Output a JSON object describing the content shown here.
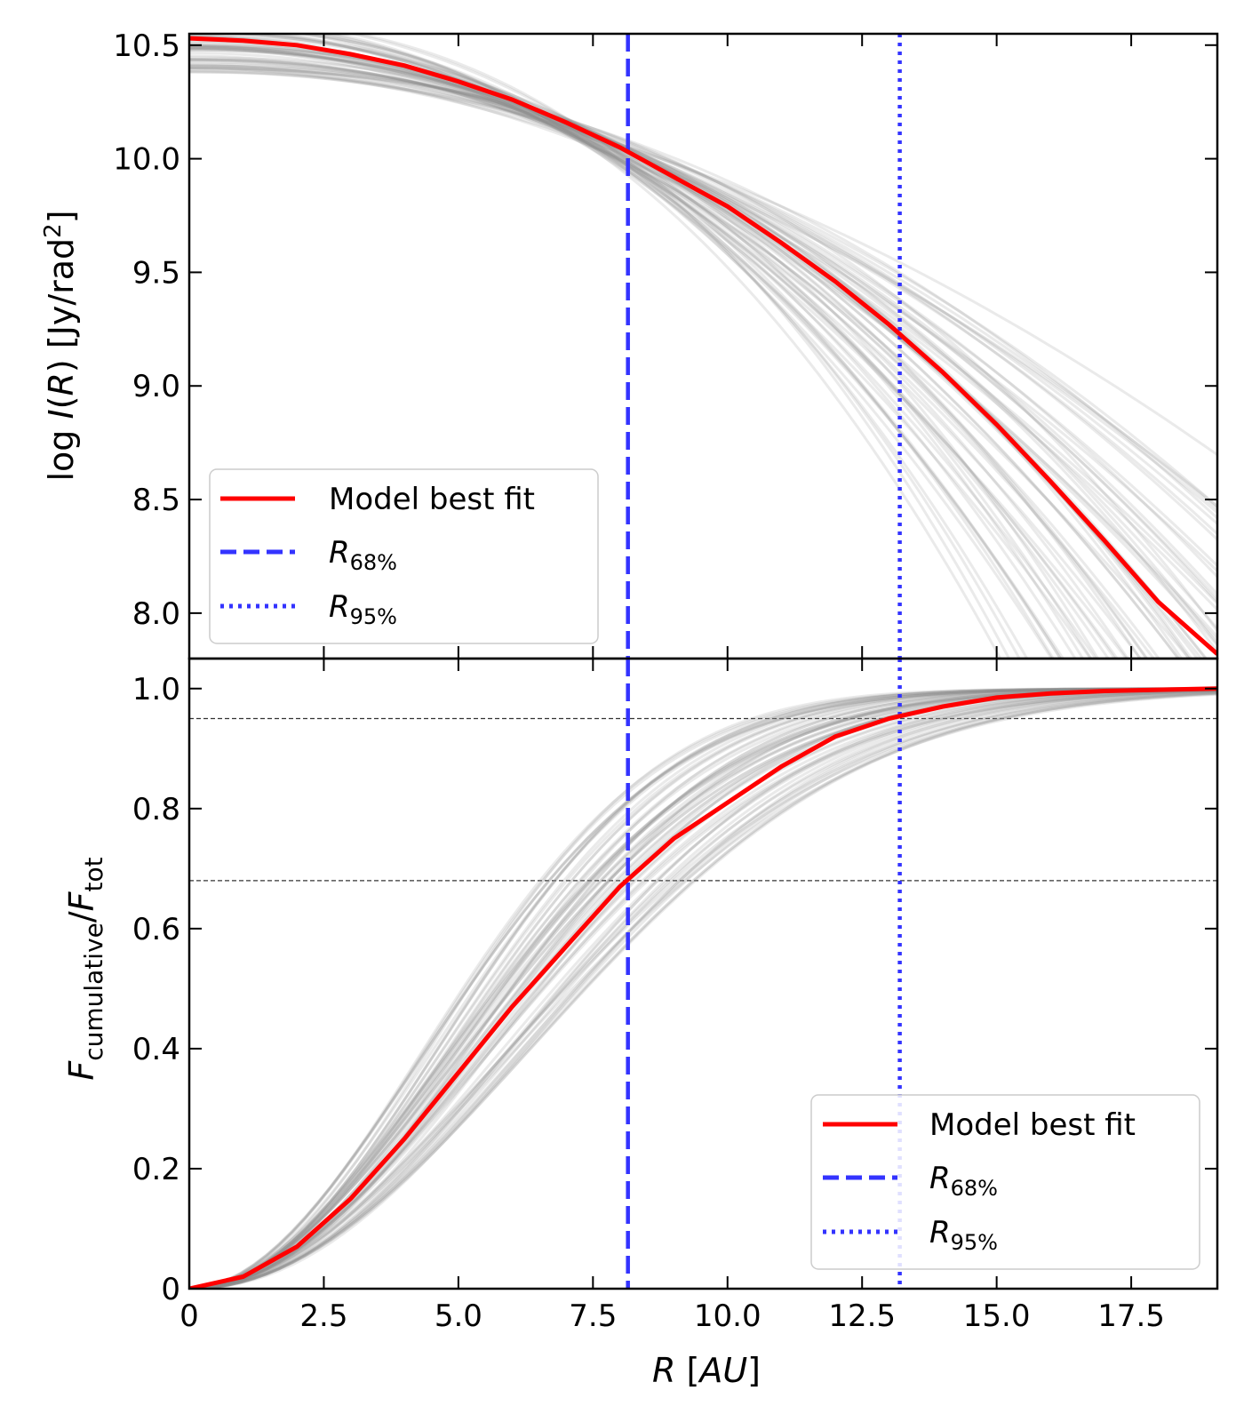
{
  "chart_data": [
    {
      "panel": "top",
      "type": "line",
      "ylabel_parts": [
        "log ",
        "I",
        "(",
        "R",
        ")   [Jy/rad",
        "2",
        "]"
      ],
      "xlim": [
        0,
        19.1
      ],
      "ylim": [
        7.8,
        10.55
      ],
      "yticks": [
        8.0,
        8.5,
        9.0,
        9.5,
        10.0,
        10.5
      ],
      "ytick_labels": [
        "8.0",
        "8.5",
        "9.0",
        "9.5",
        "10.0",
        "10.5"
      ],
      "best_fit": {
        "name": "Model best fit",
        "color": "#ff0000",
        "x": [
          0,
          1,
          2,
          3,
          4,
          5,
          6,
          7,
          8,
          9,
          10,
          11,
          12,
          13,
          14,
          15,
          16,
          17,
          18,
          19.1
        ],
        "y": [
          10.53,
          10.52,
          10.5,
          10.46,
          10.41,
          10.34,
          10.26,
          10.16,
          10.05,
          9.92,
          9.79,
          9.63,
          9.46,
          9.27,
          9.06,
          8.83,
          8.58,
          8.32,
          8.05,
          7.82
        ]
      },
      "sample_curves": {
        "color": "#888888",
        "count": 60,
        "model": "y = y0 - a * x^p",
        "y0_range": [
          10.38,
          10.62
        ],
        "pivot_x": 7.2,
        "pivot_y": 10.12,
        "p_range": [
          1.85,
          2.45
        ],
        "spread": 0.6
      },
      "vlines": [
        {
          "name": "R68",
          "x": 8.15,
          "style": "dashed",
          "color": "#3333ff"
        },
        {
          "name": "R95",
          "x": 13.2,
          "style": "dotted",
          "color": "#3333ff"
        }
      ],
      "legend": {
        "placement": "lower-left",
        "entries": [
          {
            "label": "Model best fit",
            "style": "solid",
            "color": "#ff0000"
          },
          {
            "label_main": "R",
            "label_sub": "68%",
            "style": "dashed",
            "color": "#3333ff"
          },
          {
            "label_main": "R",
            "label_sub": "95%",
            "style": "dotted",
            "color": "#3333ff"
          }
        ]
      }
    },
    {
      "panel": "bottom",
      "type": "line",
      "xlabel_parts": [
        "R",
        " [",
        "AU",
        "]"
      ],
      "ylabel_parts": [
        "F",
        "cumulative",
        "/",
        "F",
        "tot"
      ],
      "xlim": [
        0,
        19.1
      ],
      "ylim": [
        0,
        1.05
      ],
      "xticks": [
        0,
        2.5,
        5.0,
        7.5,
        10.0,
        12.5,
        15.0,
        17.5
      ],
      "xtick_labels": [
        "0",
        "2.5",
        "5.0",
        "7.5",
        "10.0",
        "12.5",
        "15.0",
        "17.5"
      ],
      "yticks": [
        0,
        0.2,
        0.4,
        0.6,
        0.8,
        1.0
      ],
      "ytick_labels": [
        "0",
        "0.2",
        "0.4",
        "0.6",
        "0.8",
        "1.0"
      ],
      "best_fit": {
        "name": "Model best fit",
        "color": "#ff0000",
        "x": [
          0,
          1,
          2,
          3,
          4,
          5,
          6,
          7,
          8,
          9,
          10,
          11,
          12,
          13,
          14,
          15,
          16,
          17,
          18,
          19.1
        ],
        "y": [
          0,
          0.02,
          0.07,
          0.15,
          0.25,
          0.36,
          0.47,
          0.57,
          0.67,
          0.75,
          0.81,
          0.87,
          0.92,
          0.95,
          0.97,
          0.985,
          0.992,
          0.996,
          0.998,
          1.0
        ]
      },
      "sample_curves": {
        "color": "#888888",
        "count": 60,
        "model": "y = 1 - exp(-(x/s)^2)",
        "s_range": [
          6.0,
          8.9
        ]
      },
      "hlines": [
        {
          "y": 0.68,
          "style": "dashed",
          "color": "#333333"
        },
        {
          "y": 0.95,
          "style": "dashed",
          "color": "#333333"
        }
      ],
      "vlines": [
        {
          "name": "R68",
          "x": 8.15,
          "style": "dashed",
          "color": "#3333ff"
        },
        {
          "name": "R95",
          "x": 13.2,
          "style": "dotted",
          "color": "#3333ff"
        }
      ],
      "legend": {
        "placement": "lower-right",
        "entries": [
          {
            "label": "Model best fit",
            "style": "solid",
            "color": "#ff0000"
          },
          {
            "label_main": "R",
            "label_sub": "68%",
            "style": "dashed",
            "color": "#3333ff"
          },
          {
            "label_main": "R",
            "label_sub": "95%",
            "style": "dotted",
            "color": "#3333ff"
          }
        ]
      }
    }
  ]
}
